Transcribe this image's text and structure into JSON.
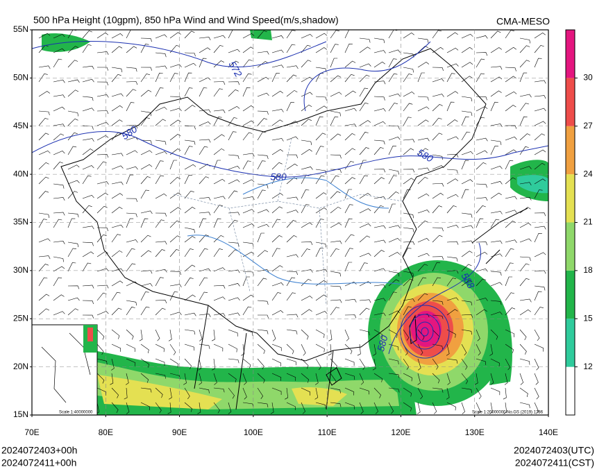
{
  "header": {
    "title": "500 hPa Height (10gpm), 850 hPa Wind and Wind Speed(m/s,shadow)",
    "source": "CMA-MESO"
  },
  "axes": {
    "lat_ticks": [
      "55N",
      "50N",
      "45N",
      "40N",
      "35N",
      "30N",
      "25N",
      "20N",
      "15N"
    ],
    "lon_ticks": [
      "70E",
      "80E",
      "90E",
      "100E",
      "110E",
      "120E",
      "130E",
      "140E"
    ]
  },
  "contour_labels": [
    "572",
    "580",
    "580",
    "580",
    "580",
    "588"
  ],
  "colorbar": {
    "levels": [
      12,
      15,
      18,
      21,
      24,
      27,
      30
    ],
    "colors": [
      "#ffffff",
      "#2fcb9c",
      "#22b54a",
      "#8fd86a",
      "#e4e052",
      "#f0a040",
      "#ee4d4a",
      "#e4167f"
    ]
  },
  "scale": {
    "inset": "Scale 1:40000000",
    "main": "Scale 1:20000000 No.GS (2019) 1786"
  },
  "footer": {
    "init_left": "2024072403+00h",
    "valid_left": "2024072411+00h",
    "init_right": "2024072403(UTC)",
    "valid_right": "2024072411(CST)"
  }
}
